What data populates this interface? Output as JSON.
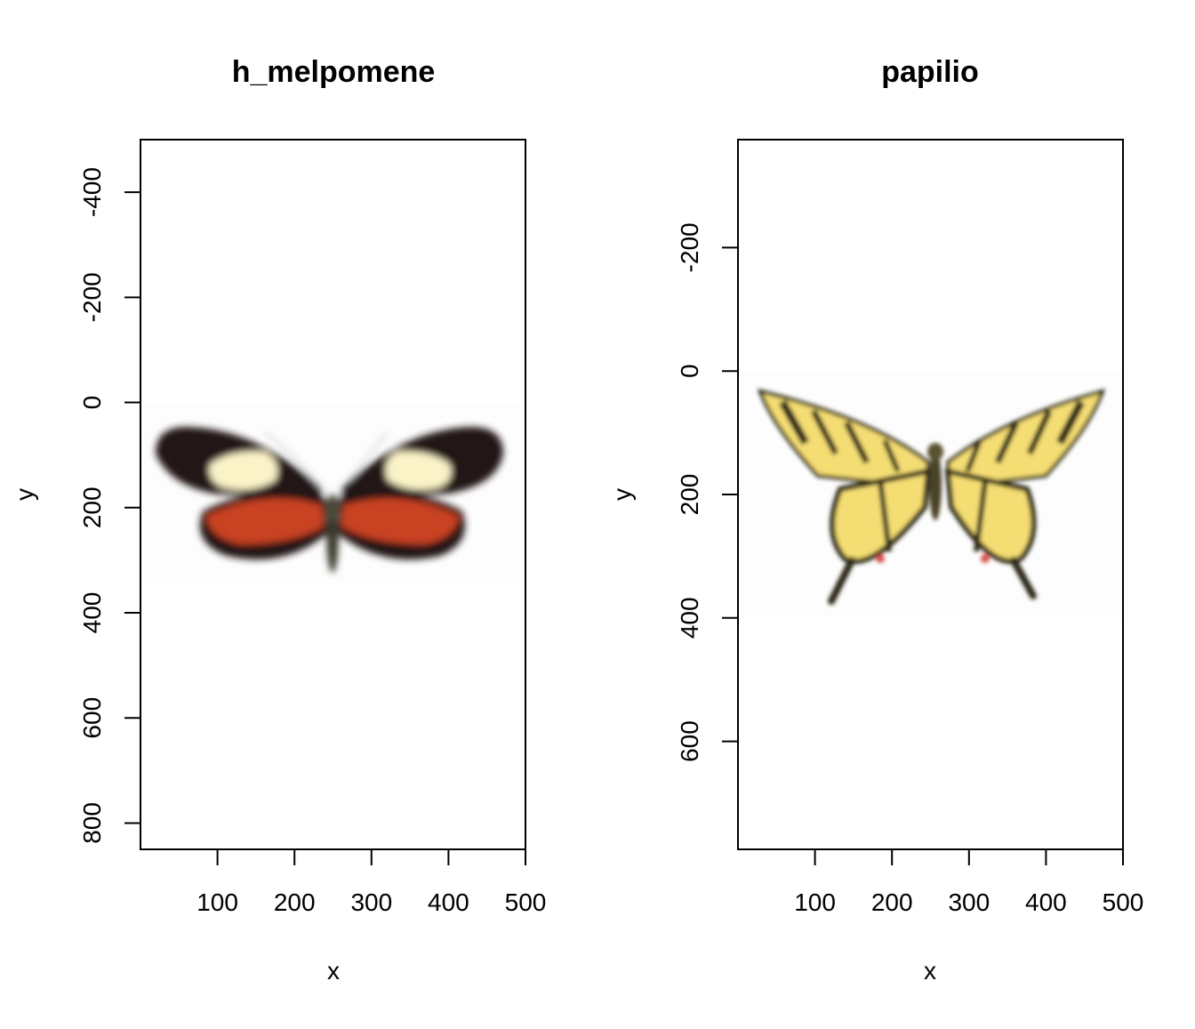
{
  "chart_data": [
    {
      "type": "raster-image",
      "title": "h_melpomene",
      "xlabel": "x",
      "ylabel": "y",
      "xlim": [
        0,
        500
      ],
      "ylim": [
        850,
        -500
      ],
      "y_reversed": true,
      "xticks": [
        100,
        200,
        300,
        400,
        500
      ],
      "yticks": [
        -400,
        -200,
        0,
        200,
        400,
        600,
        800
      ],
      "image_extent": {
        "x": [
          0,
          500
        ],
        "y": [
          0,
          340
        ]
      },
      "image_content": "Heliconius melpomene butterfly, black wings with cream-white forewing patches and red-orange hindwing bands",
      "colors": {
        "wing": "#221714",
        "patch": "#fbf3c8",
        "band": "#c94322"
      }
    },
    {
      "type": "raster-image",
      "title": "papilio",
      "xlabel": "x",
      "ylabel": "y",
      "xlim": [
        0,
        500
      ],
      "ylim": [
        775,
        -375
      ],
      "y_reversed": true,
      "xticks": [
        100,
        200,
        300,
        400,
        500
      ],
      "yticks": [
        -200,
        0,
        200,
        400,
        600
      ],
      "image_extent": {
        "x": [
          0,
          500
        ],
        "y": [
          0,
          400
        ]
      },
      "image_content": "Papilio swallowtail butterfly, yellow wings with black stripes and tailed hindwings",
      "colors": {
        "wing": "#f4dd73",
        "stripe": "#2a2515",
        "spot": "#d7514a"
      }
    }
  ]
}
